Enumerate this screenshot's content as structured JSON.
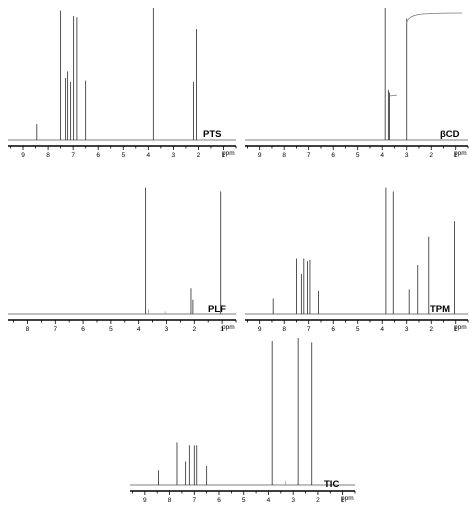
{
  "chart_data": [
    {
      "type": "line",
      "label": "PTS",
      "xlabel": "ppm",
      "x_ticks": [
        9,
        8,
        7,
        6,
        5,
        4,
        3,
        2,
        1
      ],
      "xlim": [
        9.6,
        0.5
      ],
      "peaks": [
        {
          "ppm": 8.45,
          "h": 0.12
        },
        {
          "ppm": 7.5,
          "h": 0.98
        },
        {
          "ppm": 7.3,
          "h": 0.47
        },
        {
          "ppm": 7.22,
          "h": 0.52
        },
        {
          "ppm": 7.1,
          "h": 0.44
        },
        {
          "ppm": 6.98,
          "h": 0.94
        },
        {
          "ppm": 6.85,
          "h": 0.93
        },
        {
          "ppm": 6.5,
          "h": 0.45
        },
        {
          "ppm": 3.8,
          "h": 1.0
        },
        {
          "ppm": 2.2,
          "h": 0.44
        },
        {
          "ppm": 2.08,
          "h": 0.84
        }
      ],
      "color": "#000000"
    },
    {
      "type": "line",
      "label": "βCD",
      "xlabel": "ppm",
      "x_ticks": [
        9,
        8,
        7,
        6,
        5,
        4,
        3,
        2,
        1
      ],
      "xlim": [
        9.6,
        0.5
      ],
      "peaks": [
        {
          "ppm": 3.88,
          "h": 1.0
        },
        {
          "ppm": 3.75,
          "h": 0.38
        },
        {
          "ppm": 3.7,
          "h": 0.36
        },
        {
          "ppm": 3.0,
          "h": 0.92
        }
      ],
      "integral": true,
      "color": "#000000"
    },
    {
      "type": "line",
      "label": "PLF",
      "xlabel": "ppm",
      "x_ticks": [
        8,
        7,
        6,
        5,
        4,
        3,
        2,
        1
      ],
      "xlim": [
        8.7,
        0.5
      ],
      "peaks": [
        {
          "ppm": 3.75,
          "h": 0.98
        },
        {
          "ppm": 3.65,
          "h": 0.04
        },
        {
          "ppm": 3.05,
          "h": 0.02
        },
        {
          "ppm": 2.12,
          "h": 0.2
        },
        {
          "ppm": 2.05,
          "h": 0.11
        },
        {
          "ppm": 1.05,
          "h": 0.95
        }
      ],
      "color": "#000000"
    },
    {
      "type": "line",
      "label": "TPM",
      "xlabel": "ppm",
      "x_ticks": [
        9,
        8,
        7,
        6,
        5,
        4,
        3,
        2,
        1
      ],
      "xlim": [
        9.6,
        0.5
      ],
      "peaks": [
        {
          "ppm": 8.45,
          "h": 0.12
        },
        {
          "ppm": 7.5,
          "h": 0.43
        },
        {
          "ppm": 7.3,
          "h": 0.31
        },
        {
          "ppm": 7.2,
          "h": 0.43
        },
        {
          "ppm": 7.05,
          "h": 0.41
        },
        {
          "ppm": 6.95,
          "h": 0.42
        },
        {
          "ppm": 6.6,
          "h": 0.18
        },
        {
          "ppm": 3.85,
          "h": 0.98
        },
        {
          "ppm": 3.55,
          "h": 0.95
        },
        {
          "ppm": 2.9,
          "h": 0.19
        },
        {
          "ppm": 2.55,
          "h": 0.38
        },
        {
          "ppm": 2.1,
          "h": 0.6
        },
        {
          "ppm": 1.05,
          "h": 0.72
        }
      ],
      "color": "#000000"
    },
    {
      "type": "line",
      "label": "TIC",
      "xlabel": "ppm",
      "x_ticks": [
        9,
        8,
        7,
        6,
        5,
        4,
        3,
        2,
        1
      ],
      "xlim": [
        9.6,
        0.5
      ],
      "peaks": [
        {
          "ppm": 8.45,
          "h": 0.1
        },
        {
          "ppm": 7.7,
          "h": 0.29
        },
        {
          "ppm": 7.35,
          "h": 0.16
        },
        {
          "ppm": 7.2,
          "h": 0.27
        },
        {
          "ppm": 7.0,
          "h": 0.27
        },
        {
          "ppm": 6.9,
          "h": 0.27
        },
        {
          "ppm": 6.5,
          "h": 0.13
        },
        {
          "ppm": 3.85,
          "h": 0.98
        },
        {
          "ppm": 3.3,
          "h": 0.03
        },
        {
          "ppm": 2.8,
          "h": 1.0
        },
        {
          "ppm": 2.25,
          "h": 0.97
        }
      ],
      "color": "#000000"
    }
  ]
}
